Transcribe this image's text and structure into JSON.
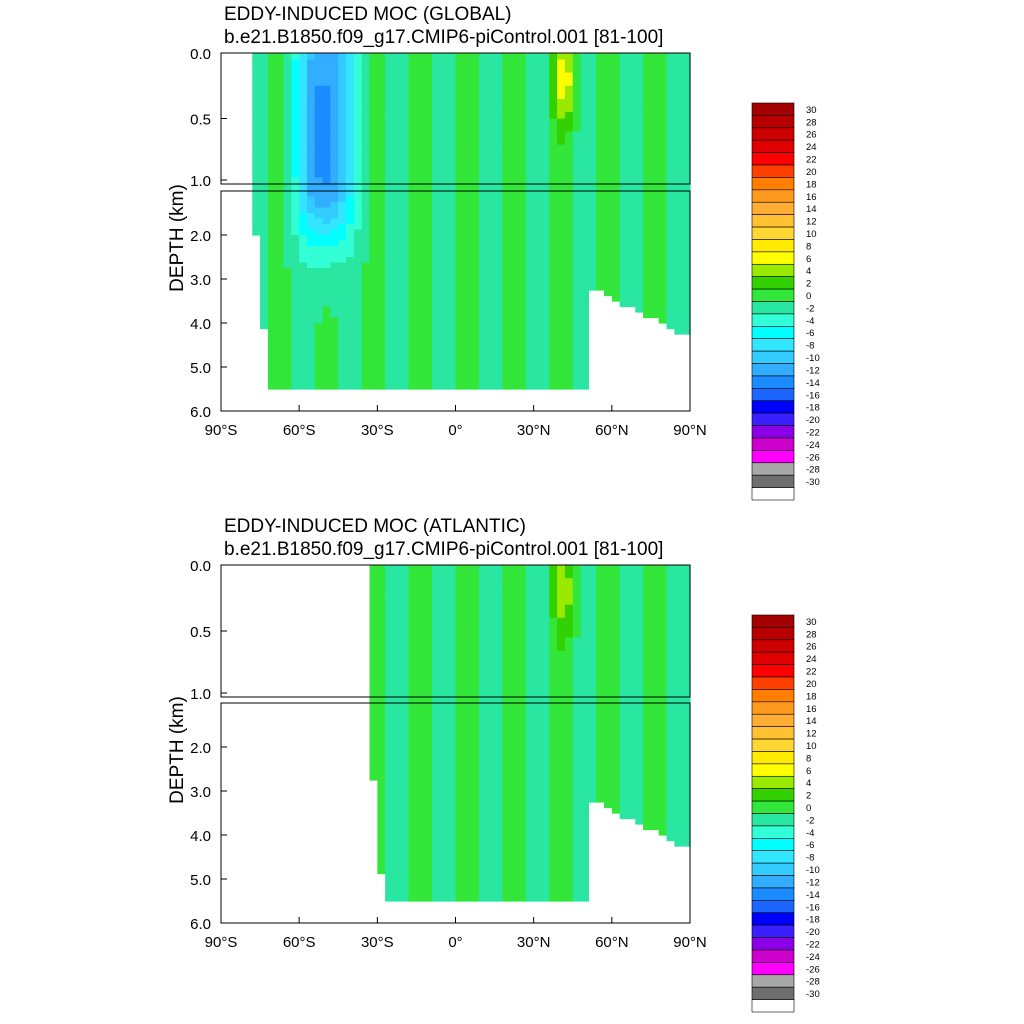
{
  "chart_data": [
    {
      "type": "heatmap",
      "title": "EDDY-INDUCED MOC (GLOBAL)",
      "subtitle": "b.e21.B1850.f09_g17.CMIP6-piControl.001 [81-100]",
      "ylabel": "DEPTH (km)",
      "xlabel": "",
      "x_ticks": [
        "90°S",
        "60°S",
        "30°S",
        "0°",
        "30°N",
        "60°N",
        "90°N"
      ],
      "x_tick_values": [
        -90,
        -60,
        -30,
        0,
        30,
        60,
        90
      ],
      "upper_y_ticks": [
        "0.0",
        "0.5",
        "1.0"
      ],
      "upper_y_values": [
        0,
        0.5,
        1.0
      ],
      "lower_y_ticks": [
        "2.0",
        "3.0",
        "4.0",
        "5.0",
        "6.0"
      ],
      "lower_y_values": [
        2,
        3,
        4,
        5,
        6
      ],
      "xlim": [
        -90,
        90
      ],
      "upper_ylim": [
        0,
        1.0
      ],
      "lower_ylim": [
        1.0,
        6.0
      ],
      "colorbar": {
        "levels": [
          "30",
          "28",
          "26",
          "24",
          "22",
          "20",
          "18",
          "16",
          "14",
          "12",
          "10",
          "8",
          "6",
          "4",
          "2",
          "0",
          "-2",
          "-4",
          "-6",
          "-8",
          "-10",
          "-12",
          "-14",
          "-16",
          "-18",
          "-20",
          "-22",
          "-24",
          "-26",
          "-28",
          "-30"
        ],
        "colors": [
          "#a40000",
          "#b80000",
          "#cc0000",
          "#e00000",
          "#ff0000",
          "#ff4000",
          "#ff8000",
          "#ff9a20",
          "#ffad33",
          "#ffc033",
          "#ffd633",
          "#ffeb00",
          "#ffff00",
          "#9aea00",
          "#33d100",
          "#33e63a",
          "#29e6a0",
          "#33ffd6",
          "#00ffff",
          "#33e6ff",
          "#33ccff",
          "#33adff",
          "#1a8cff",
          "#1a66ff",
          "#0000ff",
          "#3a20ff",
          "#8c00e6",
          "#cc00cc",
          "#ff00ff",
          "#a8a8a8",
          "#6e6e6e",
          "#ffffff"
        ]
      },
      "features": [
        {
          "kind": "min",
          "lat": -50,
          "depth_km": 0.6,
          "value": -14
        },
        {
          "kind": "max",
          "lat": 42,
          "depth_km": 0.2,
          "value": 6
        }
      ],
      "ocean_extent": {
        "lat_min": -78,
        "lat_max": 90,
        "max_depth_km": 5.5
      }
    },
    {
      "type": "heatmap",
      "title": "EDDY-INDUCED MOC (ATLANTIC)",
      "subtitle": "b.e21.B1850.f09_g17.CMIP6-piControl.001 [81-100]",
      "ylabel": "DEPTH (km)",
      "xlabel": "",
      "x_ticks": [
        "90°S",
        "60°S",
        "30°S",
        "0°",
        "30°N",
        "60°N",
        "90°N"
      ],
      "x_tick_values": [
        -90,
        -60,
        -30,
        0,
        30,
        60,
        90
      ],
      "upper_y_ticks": [
        "0.0",
        "0.5",
        "1.0"
      ],
      "upper_y_values": [
        0,
        0.5,
        1.0
      ],
      "lower_y_ticks": [
        "2.0",
        "3.0",
        "4.0",
        "5.0",
        "6.0"
      ],
      "lower_y_values": [
        2,
        3,
        4,
        5,
        6
      ],
      "xlim": [
        -90,
        90
      ],
      "upper_ylim": [
        0,
        1.0
      ],
      "lower_ylim": [
        1.0,
        6.0
      ],
      "colorbar": {
        "levels": [
          "30",
          "28",
          "26",
          "24",
          "22",
          "20",
          "18",
          "16",
          "14",
          "12",
          "10",
          "8",
          "6",
          "4",
          "2",
          "0",
          "-2",
          "-4",
          "-6",
          "-8",
          "-10",
          "-12",
          "-14",
          "-16",
          "-18",
          "-20",
          "-22",
          "-24",
          "-26",
          "-28",
          "-30"
        ],
        "colors": [
          "#a40000",
          "#b80000",
          "#cc0000",
          "#e00000",
          "#ff0000",
          "#ff4000",
          "#ff8000",
          "#ff9a20",
          "#ffad33",
          "#ffc033",
          "#ffd633",
          "#ffeb00",
          "#ffff00",
          "#9aea00",
          "#33d100",
          "#33e63a",
          "#29e6a0",
          "#33ffd6",
          "#00ffff",
          "#33e6ff",
          "#33ccff",
          "#33adff",
          "#1a8cff",
          "#1a66ff",
          "#0000ff",
          "#3a20ff",
          "#8c00e6",
          "#cc00cc",
          "#ff00ff",
          "#a8a8a8",
          "#6e6e6e",
          "#ffffff"
        ]
      },
      "features": [
        {
          "kind": "max",
          "lat": 42,
          "depth_km": 0.2,
          "value": 4
        }
      ],
      "ocean_extent": {
        "lat_min": -34,
        "lat_max": 90,
        "max_depth_km": 5.5
      }
    }
  ]
}
